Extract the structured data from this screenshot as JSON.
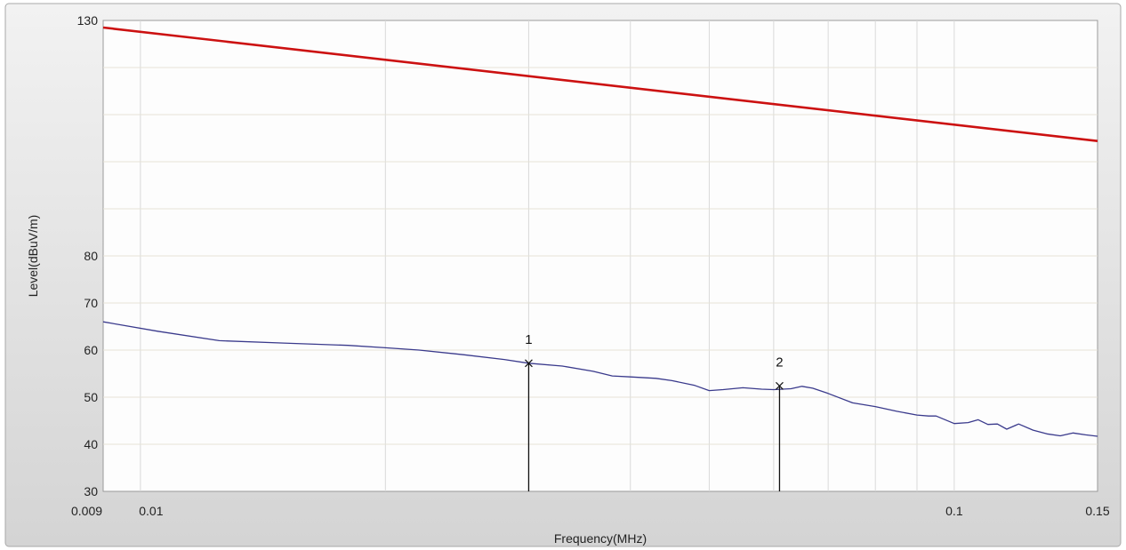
{
  "chart_data": {
    "type": "line",
    "title": "",
    "xlabel": "Frequency(MHz)",
    "ylabel": "Level(dBuV/m)",
    "x_scale": "log",
    "xlim": [
      0.009,
      0.15
    ],
    "ylim": [
      30,
      130
    ],
    "grid": true,
    "x_ticks": [
      {
        "value": 0.009,
        "label": "0.009"
      },
      {
        "value": 0.01,
        "label": "0.01"
      },
      {
        "value": 0.1,
        "label": "0.1"
      },
      {
        "value": 0.15,
        "label": "0.15"
      }
    ],
    "y_ticks": [
      30,
      40,
      50,
      60,
      70,
      80,
      130
    ],
    "series": [
      {
        "color": "#cc1111",
        "x": [
          0.009,
          0.15
        ],
        "y": [
          128.5,
          104.4
        ]
      },
      {
        "color": "#3a3a8c",
        "x": [
          0.009,
          0.0105,
          0.0125,
          0.015,
          0.018,
          0.02,
          0.022,
          0.025,
          0.028,
          0.03,
          0.033,
          0.036,
          0.038,
          0.04,
          0.043,
          0.045,
          0.048,
          0.05,
          0.052,
          0.055,
          0.058,
          0.06,
          0.063,
          0.065,
          0.067,
          0.07,
          0.075,
          0.08,
          0.085,
          0.09,
          0.093,
          0.095,
          0.1,
          0.104,
          0.107,
          0.11,
          0.113,
          0.116,
          0.12,
          0.125,
          0.13,
          0.135,
          0.14,
          0.145,
          0.15
        ],
        "y": [
          66,
          64,
          62,
          61.5,
          61,
          60.5,
          60,
          59,
          58,
          57.2,
          56.6,
          55.5,
          54.5,
          54.3,
          54,
          53.5,
          52.5,
          51.4,
          51.6,
          52,
          51.7,
          51.6,
          51.8,
          52.3,
          51.9,
          50.8,
          48.8,
          48,
          47,
          46.2,
          46,
          46,
          44.4,
          44.6,
          45.2,
          44.2,
          44.3,
          43.2,
          44.3,
          43.0,
          42.2,
          41.8,
          42.4,
          42.0,
          41.7
        ]
      }
    ],
    "markers": [
      {
        "label": "1",
        "x": 0.03,
        "y": 57.2
      },
      {
        "label": "2",
        "x": 0.061,
        "y": 52.4
      }
    ]
  }
}
